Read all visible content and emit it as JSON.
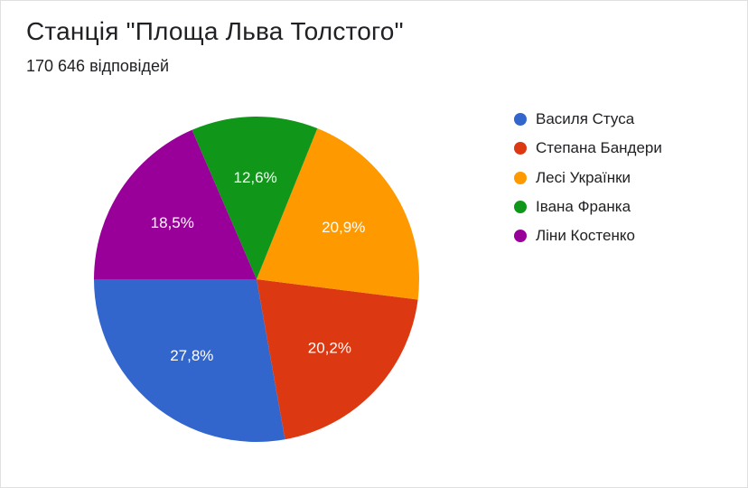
{
  "title": "Станція \"Площа Льва Толстого\"",
  "subtitle": "170 646 відповідей",
  "chart": {
    "type": "pie",
    "background_color": "#ffffff",
    "label_fontsize": 17,
    "label_color": "#ffffff",
    "title_fontsize": 28,
    "subtitle_fontsize": 18,
    "legend_fontsize": 17,
    "radius": 180,
    "start_angle_deg": 180,
    "slices": [
      {
        "label": "Василя Стуса",
        "value": 27.8,
        "display": "27,8%",
        "color": "#3366cc"
      },
      {
        "label": "Степана Бандери",
        "value": 20.2,
        "display": "20,2%",
        "color": "#dc3912"
      },
      {
        "label": "Лесі Українки",
        "value": 20.9,
        "display": "20,9%",
        "color": "#ff9900"
      },
      {
        "label": "Івана Франка",
        "value": 12.6,
        "display": "12,6%",
        "color": "#109618"
      },
      {
        "label": "Ліни Костенко",
        "value": 18.5,
        "display": "18,5%",
        "color": "#990099"
      }
    ]
  }
}
